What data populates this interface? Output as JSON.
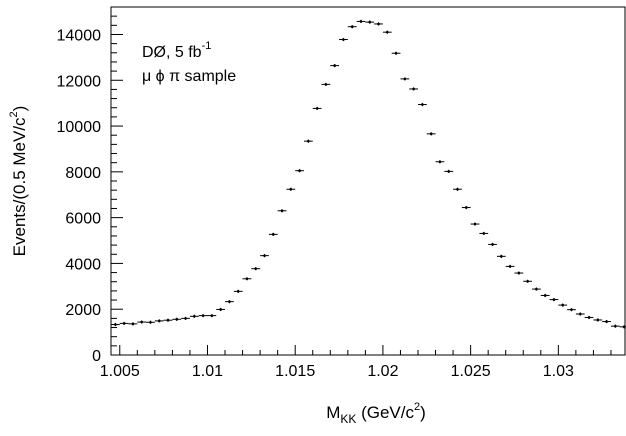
{
  "chart_data": {
    "type": "scatter",
    "style": "points with error bars",
    "title": "",
    "xlabel": {
      "main": "M",
      "sub": "KK",
      "after": " (GeV/c",
      "sup": "2",
      "end": ")"
    },
    "ylabel": {
      "main": "Events/(0.5 MeV/c",
      "sup": "2",
      "end": ")"
    },
    "xlim": [
      1.0045,
      1.0338
    ],
    "ylim": [
      0,
      15200
    ],
    "xticks": [
      1.005,
      1.01,
      1.015,
      1.02,
      1.025,
      1.03
    ],
    "xtick_labels": [
      "1.005",
      "1.01",
      "1.015",
      "1.02",
      "1.025",
      "1.03"
    ],
    "yticks": [
      0,
      2000,
      4000,
      6000,
      8000,
      10000,
      12000,
      14000
    ],
    "ytick_labels": [
      "0",
      "2000",
      "4000",
      "6000",
      "8000",
      "10000",
      "12000",
      "14000"
    ],
    "grid": false,
    "annotations": {
      "line1": {
        "main": "DØ, 5 fb",
        "sup": "-1"
      },
      "line2": "μ ϕ π sample"
    },
    "series": [
      {
        "x": [
          1.00475,
          1.00525,
          1.00575,
          1.00625,
          1.00675,
          1.00725,
          1.00775,
          1.00825,
          1.00875,
          1.00925,
          1.00975,
          1.01025,
          1.01075,
          1.01125,
          1.01175,
          1.01225,
          1.01275,
          1.01325,
          1.01375,
          1.01425,
          1.01475,
          1.01525,
          1.01575,
          1.01625,
          1.01675,
          1.01725,
          1.01775,
          1.01825,
          1.01875,
          1.01925,
          1.01975,
          1.02025,
          1.02075,
          1.02125,
          1.02175,
          1.02225,
          1.02275,
          1.02325,
          1.02375,
          1.02425,
          1.02475,
          1.02525,
          1.02575,
          1.02625,
          1.02675,
          1.02725,
          1.02775,
          1.02825,
          1.02875,
          1.02925,
          1.02975,
          1.03025,
          1.03075,
          1.03125,
          1.03175,
          1.03225,
          1.03275,
          1.03325,
          1.03375
        ],
        "y": [
          1330,
          1380,
          1360,
          1440,
          1430,
          1490,
          1520,
          1560,
          1600,
          1690,
          1720,
          1720,
          1990,
          2330,
          2780,
          3330,
          3770,
          4340,
          5270,
          6300,
          7240,
          8050,
          9340,
          10770,
          11820,
          12640,
          13780,
          14340,
          14570,
          14540,
          14460,
          14100,
          13180,
          12060,
          11620,
          10940,
          9660,
          8440,
          8020,
          7240,
          6440,
          5720,
          5310,
          4830,
          4310,
          3870,
          3580,
          3220,
          2880,
          2600,
          2420,
          2180,
          1980,
          1790,
          1640,
          1530,
          1460,
          1260,
          1230
        ],
        "yerr": [
          70,
          70,
          70,
          70,
          70,
          70,
          70,
          70,
          70,
          70,
          70,
          70,
          70,
          70,
          70,
          70,
          70,
          70,
          70,
          70,
          70,
          70,
          70,
          70,
          70,
          70,
          70,
          70,
          70,
          70,
          70,
          70,
          70,
          70,
          70,
          70,
          70,
          70,
          70,
          70,
          70,
          70,
          70,
          70,
          70,
          70,
          70,
          70,
          70,
          70,
          70,
          70,
          70,
          70,
          70,
          70,
          70,
          70,
          70
        ],
        "color": "#000000"
      }
    ]
  }
}
